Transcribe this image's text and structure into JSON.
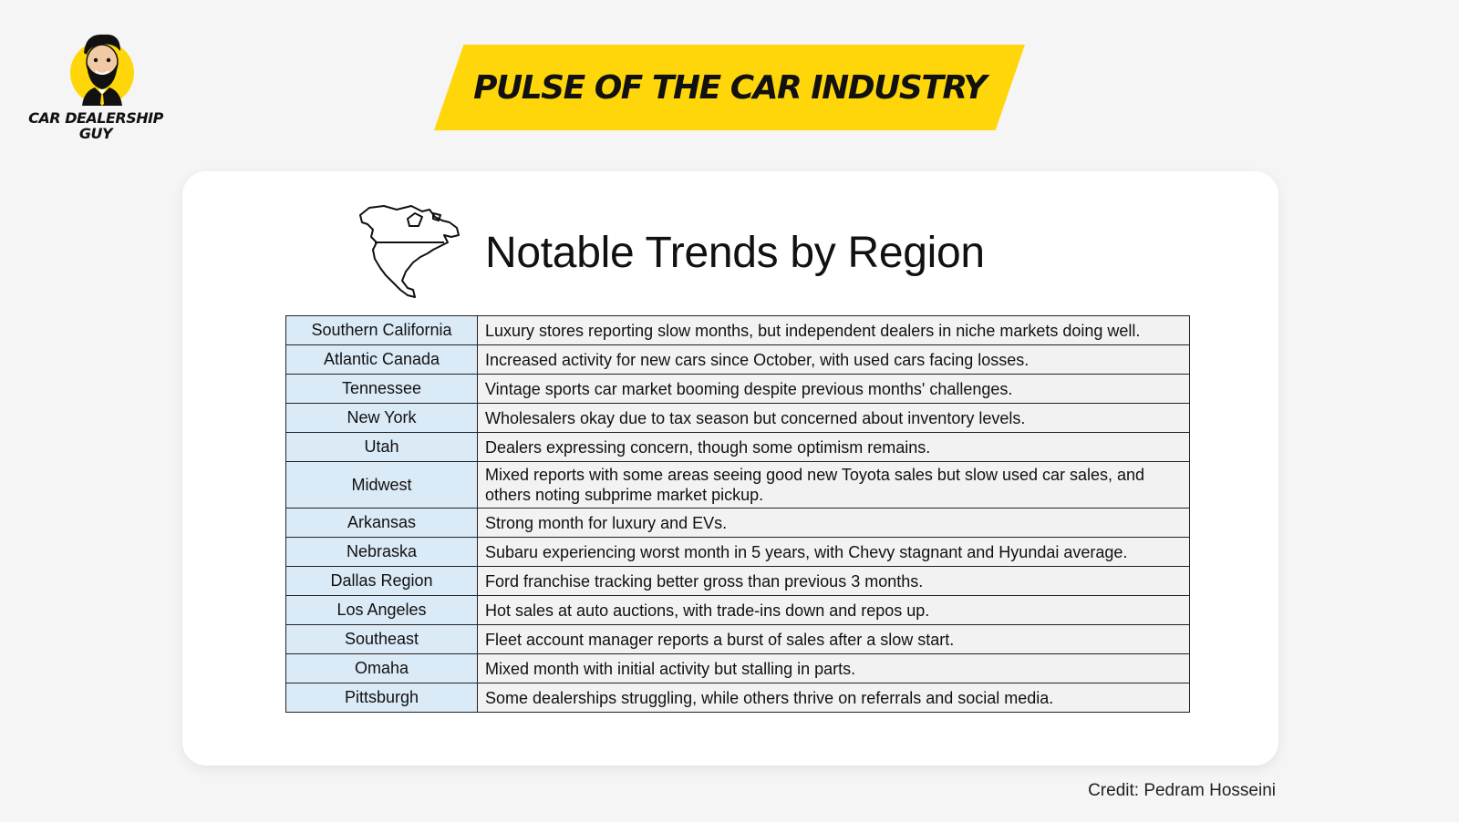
{
  "logo": {
    "line1": "CAR DEALERSHIP",
    "line2": "GUY",
    "accent_color": "#ffd60a"
  },
  "banner": {
    "title": "PULSE OF THE CAR INDUSTRY",
    "color": "#ffd60a"
  },
  "section": {
    "title": "Notable Trends by Region",
    "icon": "north-america-map-icon"
  },
  "table": {
    "rows": [
      {
        "region": "Southern California",
        "trend": "Luxury stores reporting slow months, but independent dealers in niche markets doing well."
      },
      {
        "region": "Atlantic Canada",
        "trend": "Increased activity for new cars since October, with used cars facing losses."
      },
      {
        "region": "Tennessee",
        "trend": "Vintage sports car market booming despite previous months' challenges."
      },
      {
        "region": "New York",
        "trend": "Wholesalers okay due to tax season but concerned about inventory levels."
      },
      {
        "region": "Utah",
        "trend": "Dealers expressing concern, though some optimism remains."
      },
      {
        "region": "Midwest",
        "trend": "Mixed reports with some areas seeing good new Toyota sales but slow used car sales, and others noting subprime market pickup."
      },
      {
        "region": "Arkansas",
        "trend": "Strong month for luxury and EVs."
      },
      {
        "region": "Nebraska",
        "trend": "Subaru experiencing worst month in 5 years, with Chevy stagnant and Hyundai average."
      },
      {
        "region": "Dallas Region",
        "trend": "Ford franchise tracking better gross than previous 3 months."
      },
      {
        "region": "Los Angeles",
        "trend": "Hot sales at auto auctions, with trade-ins down and repos up."
      },
      {
        "region": "Southeast",
        "trend": "Fleet account manager reports a burst of sales after a slow start."
      },
      {
        "region": "Omaha",
        "trend": "Mixed month with initial activity but stalling in parts."
      },
      {
        "region": "Pittsburgh",
        "trend": "Some dealerships struggling, while others thrive on referrals and social media."
      }
    ],
    "region_bg": "#dbeaf7",
    "trend_bg": "#f2f2f2"
  },
  "credit": "Credit: Pedram Hosseini"
}
